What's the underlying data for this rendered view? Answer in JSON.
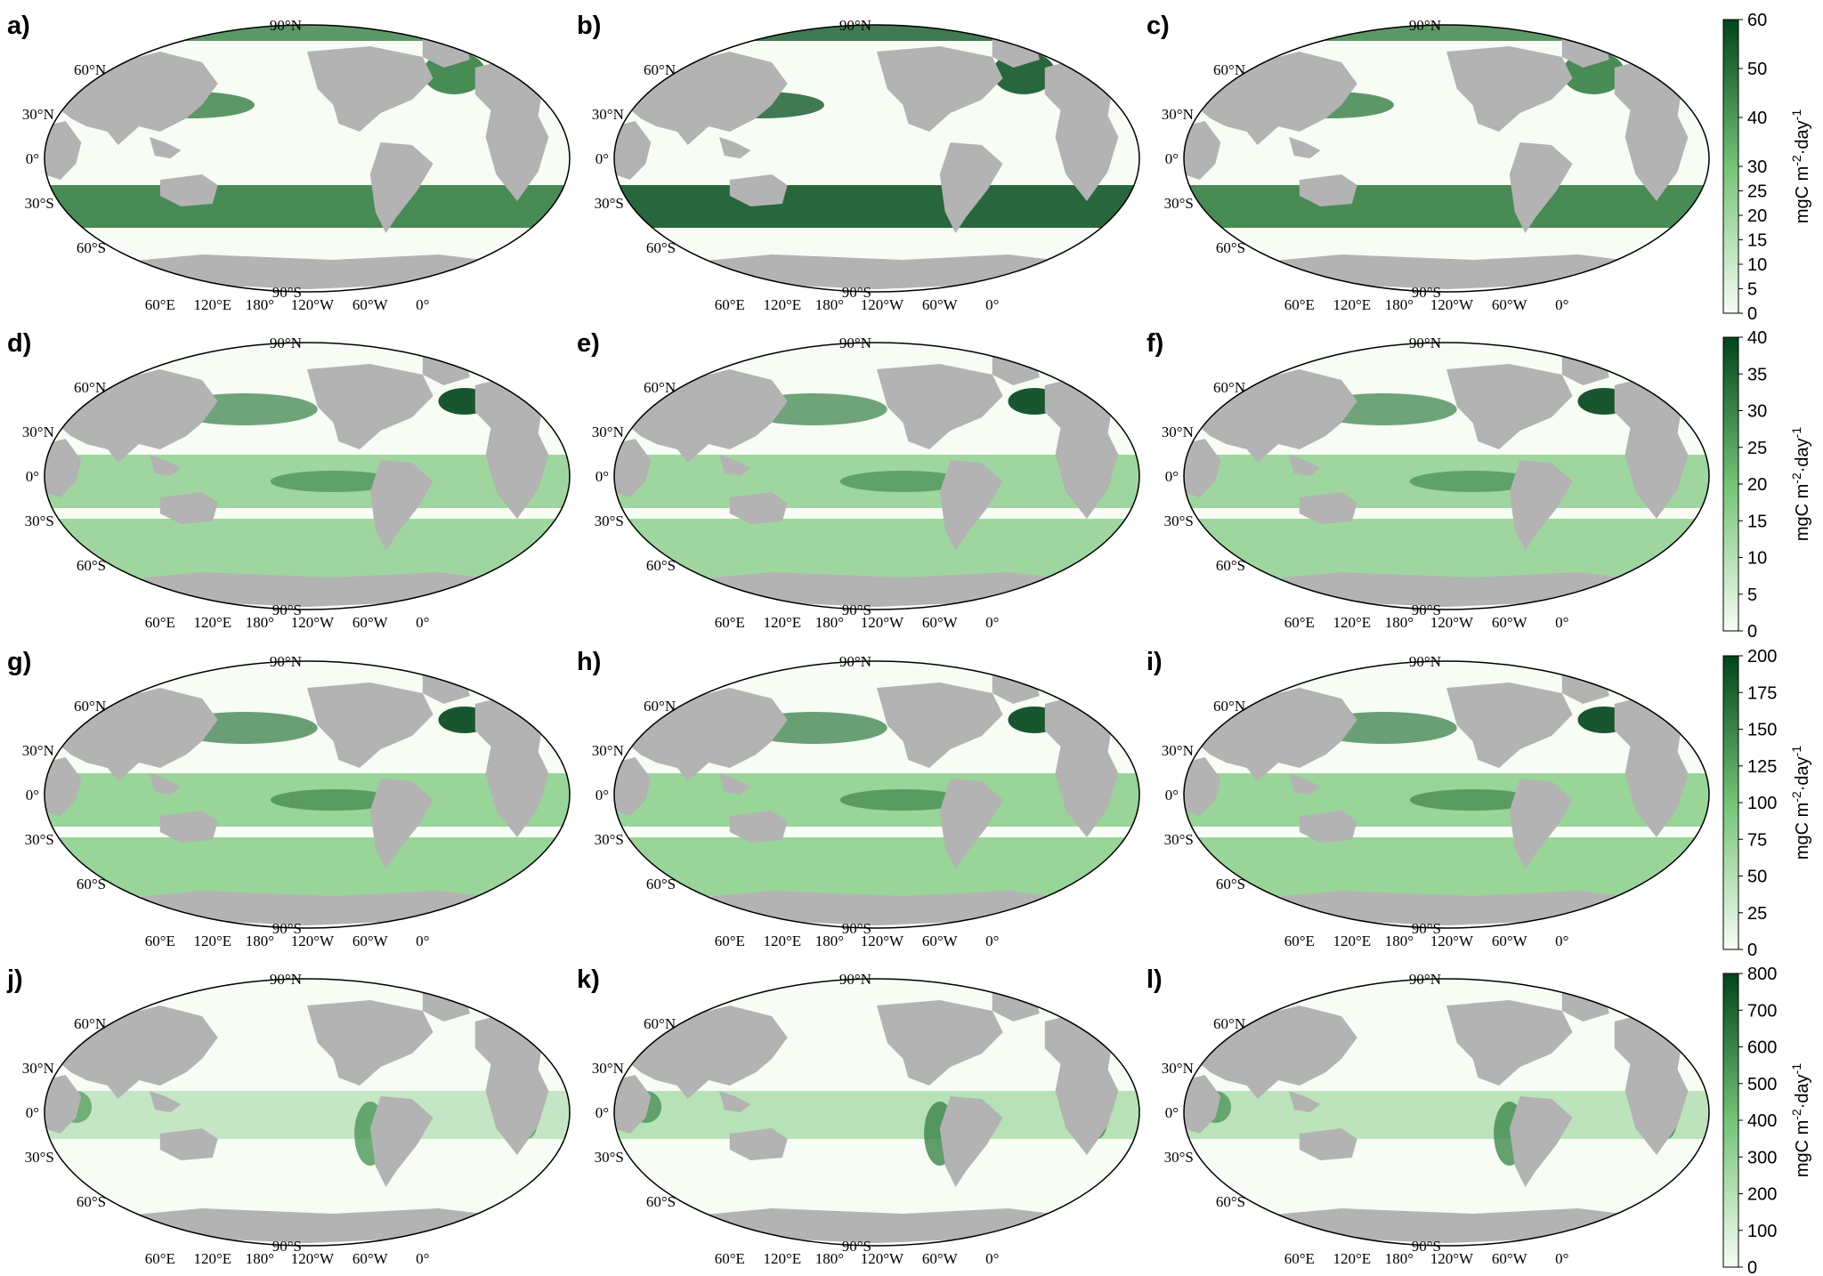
{
  "colors": {
    "land": "#b3b3b3",
    "ocean_low": "#f7fcf5",
    "ocean_mid": "#74c476",
    "ocean_high": "#00441b",
    "frame": "#000000"
  },
  "latitude_labels": [
    "90°N",
    "60°N",
    "30°N",
    "0°",
    "30°S",
    "60°S",
    "90°S"
  ],
  "longitude_labels": [
    "60°E",
    "120°E",
    "180°",
    "120°W",
    "60°W",
    "0°"
  ],
  "panels": [
    {
      "label": "a)",
      "row": 0,
      "col": 0,
      "intensity": 0.55,
      "pattern": "southern"
    },
    {
      "label": "b)",
      "row": 0,
      "col": 1,
      "intensity": 0.85,
      "pattern": "southern"
    },
    {
      "label": "c)",
      "row": 0,
      "col": 2,
      "intensity": 0.55,
      "pattern": "southern"
    },
    {
      "label": "d)",
      "row": 1,
      "col": 0,
      "intensity": 0.55,
      "pattern": "global"
    },
    {
      "label": "e)",
      "row": 1,
      "col": 1,
      "intensity": 0.55,
      "pattern": "global"
    },
    {
      "label": "f)",
      "row": 1,
      "col": 2,
      "intensity": 0.55,
      "pattern": "global"
    },
    {
      "label": "g)",
      "row": 2,
      "col": 0,
      "intensity": 0.6,
      "pattern": "global"
    },
    {
      "label": "h)",
      "row": 2,
      "col": 1,
      "intensity": 0.6,
      "pattern": "global"
    },
    {
      "label": "i)",
      "row": 2,
      "col": 2,
      "intensity": 0.6,
      "pattern": "global"
    },
    {
      "label": "j)",
      "row": 3,
      "col": 0,
      "intensity": 0.35,
      "pattern": "coastal"
    },
    {
      "label": "k)",
      "row": 3,
      "col": 1,
      "intensity": 0.5,
      "pattern": "coastal"
    },
    {
      "label": "l)",
      "row": 3,
      "col": 2,
      "intensity": 0.45,
      "pattern": "coastal"
    }
  ],
  "colorbars": [
    {
      "row": 0,
      "ticks": [
        "0",
        "5",
        "10",
        "15",
        "20",
        "25",
        "30",
        "40",
        "50",
        "60"
      ],
      "range": [
        0,
        60
      ],
      "unit": "mgC m^-2·day^-1"
    },
    {
      "row": 1,
      "ticks": [
        "0",
        "5",
        "10",
        "15",
        "20",
        "25",
        "30",
        "35",
        "40"
      ],
      "range": [
        0,
        40
      ],
      "unit": "mgC m^-2·day^-1"
    },
    {
      "row": 2,
      "ticks": [
        "0",
        "25",
        "50",
        "75",
        "100",
        "125",
        "150",
        "175",
        "200"
      ],
      "range": [
        0,
        200
      ],
      "unit": "mgC m^-2·day^-1"
    },
    {
      "row": 3,
      "ticks": [
        "0",
        "100",
        "200",
        "300",
        "400",
        "500",
        "600",
        "700",
        "800"
      ],
      "range": [
        0,
        800
      ],
      "unit": "mgC m^-2·day^-1"
    }
  ],
  "unit_text": {
    "prefix": "mgC m",
    "exp1": "-2",
    "mid": "·day",
    "exp2": "-1"
  }
}
